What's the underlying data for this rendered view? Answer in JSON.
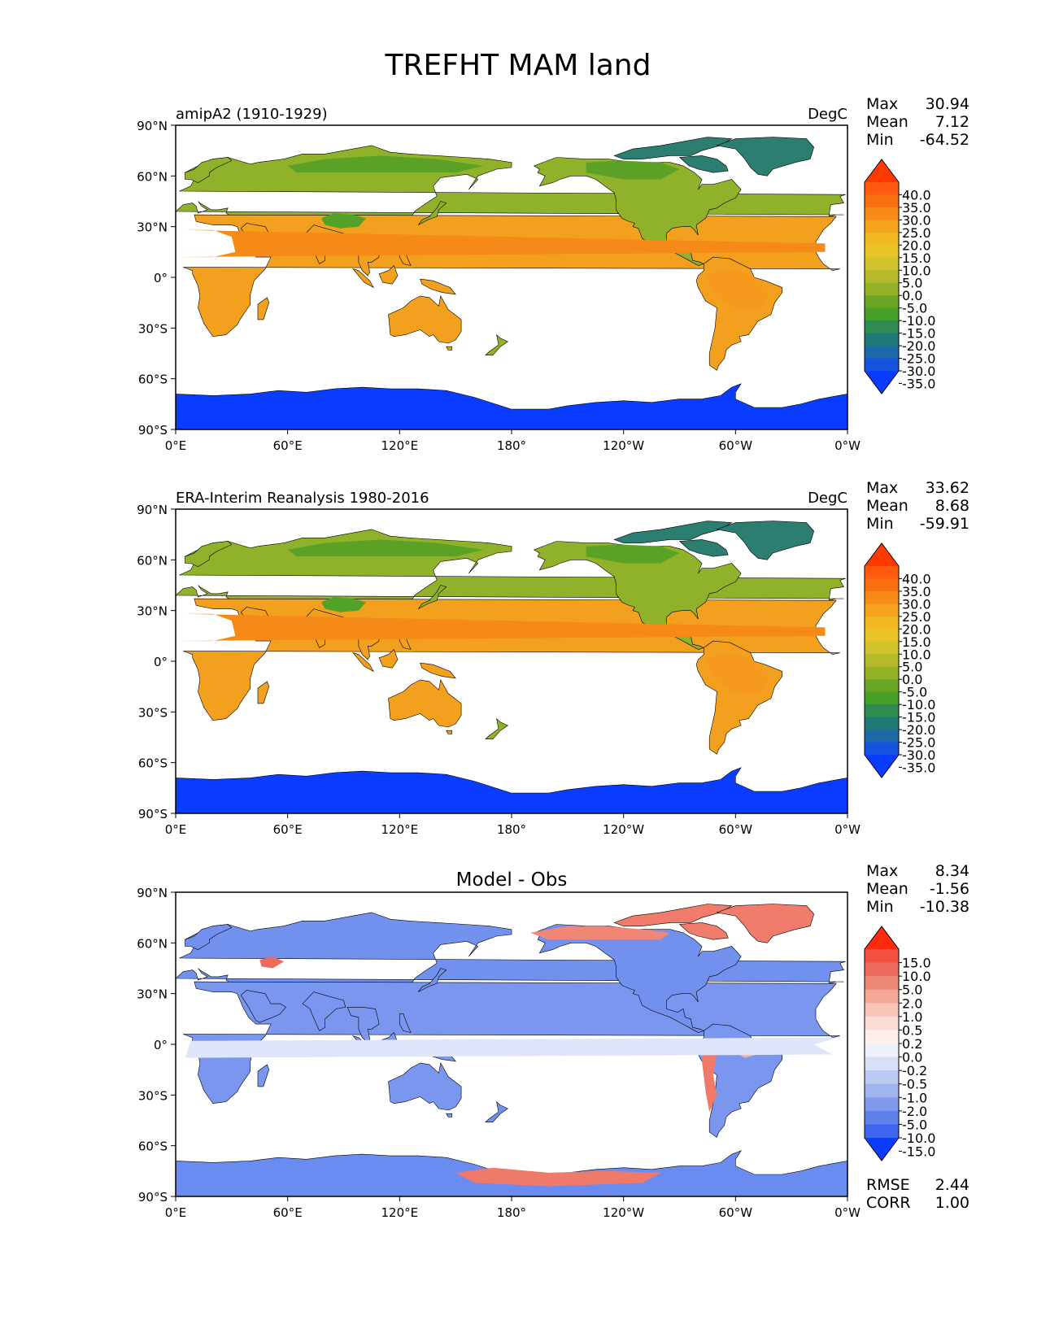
{
  "figure": {
    "title": "TREFHT MAM land"
  },
  "axes": {
    "lat_ticks": [
      "90°N",
      "60°N",
      "30°N",
      "0°",
      "30°S",
      "60°S",
      "90°S"
    ],
    "lon_ticks": [
      "0°E",
      "60°E",
      "120°E",
      "180°",
      "120°W",
      "60°W",
      "0°W"
    ]
  },
  "stat_labels": {
    "max": "Max",
    "mean": "Mean",
    "min": "Min",
    "rmse": "RMSE",
    "corr": "CORR"
  },
  "panels": [
    {
      "left_title": "amipA2 (1910-1929)",
      "center_title": "",
      "units": "DegC",
      "stats": {
        "max": "30.94",
        "mean": "7.12",
        "min": "-64.52"
      },
      "colorbar": "abs"
    },
    {
      "left_title": "ERA-Interim Reanalysis 1980-2016",
      "center_title": "",
      "units": "DegC",
      "stats": {
        "max": "33.62",
        "mean": "8.68",
        "min": "-59.91"
      },
      "colorbar": "abs"
    },
    {
      "left_title": "",
      "center_title": "Model - Obs",
      "units": "",
      "stats": {
        "max": "8.34",
        "mean": "-1.56",
        "min": "-10.38"
      },
      "colorbar": "diff",
      "extra_stats": {
        "rmse": "2.44",
        "corr": "1.00"
      }
    }
  ],
  "colorbars": {
    "abs": {
      "labels": [
        "40.0",
        "35.0",
        "30.0",
        "25.0",
        "20.0",
        "15.0",
        "10.0",
        "5.0",
        "0.0",
        "-5.0",
        "-10.0",
        "-15.0",
        "-20.0",
        "-25.0",
        "-30.0",
        "-35.0"
      ],
      "colors": [
        "#ff3a00",
        "#ff5a10",
        "#f87010",
        "#f88a18",
        "#f5a21c",
        "#f2b822",
        "#e8c428",
        "#cfc22c",
        "#b4ba2a",
        "#94b026",
        "#6aa626",
        "#48a028",
        "#2e8c50",
        "#1f7a78",
        "#1e6aa8",
        "#1552e0",
        "#0a3cff"
      ]
    },
    "diff": {
      "labels": [
        "15.0",
        "10.0",
        "5.0",
        "2.0",
        "1.0",
        "0.5",
        "0.2",
        "0.0",
        "-0.2",
        "-0.5",
        "-1.0",
        "-2.0",
        "-5.0",
        "-10.0",
        "-15.0"
      ],
      "colors": [
        "#ff2a10",
        "#f25040",
        "#ee6a5c",
        "#f08878",
        "#f5a898",
        "#f8c4b8",
        "#fbdcd4",
        "#fdf0ec",
        "#eef0fc",
        "#d8e0f8",
        "#bccaf4",
        "#a0b4f0",
        "#8098ec",
        "#6080ea",
        "#3c66f0",
        "#0a3cff"
      ]
    }
  },
  "colors": {
    "ocean": "#ffffff",
    "antarctic_abs": "#0a3cff",
    "land_diff": "#6a8cf0",
    "warm_diff": "#f07a6a"
  }
}
